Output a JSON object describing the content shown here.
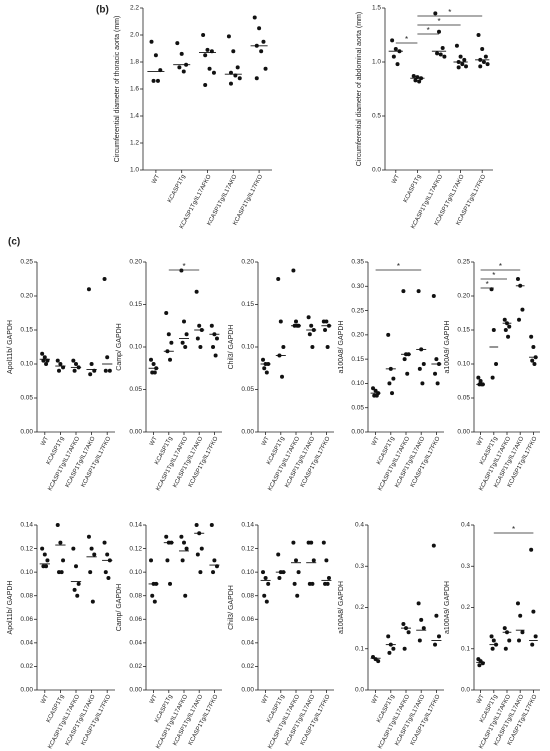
{
  "panel_labels": [
    "(b)",
    "(c)"
  ],
  "chart_data": [
    {
      "type": "dot",
      "color": "#111111",
      "ylabel": "Circumferential diameter of thoracic aorta (mm)",
      "categories": [
        "WT",
        "KCASP1Tg",
        "KCASP1Tg/IL17AFKO",
        "KCASP1Tg/IL17AKO",
        "KCASP1Tg/IL17FKO"
      ],
      "groups": [
        [
          1.95,
          1.85,
          1.74,
          1.66,
          1.66
        ],
        [
          1.94,
          1.86,
          1.78,
          1.76,
          1.73
        ],
        [
          2.0,
          1.89,
          1.88,
          1.85,
          1.75,
          1.72,
          1.63
        ],
        [
          1.99,
          1.88,
          1.76,
          1.72,
          1.7,
          1.68,
          1.64
        ],
        [
          2.13,
          2.05,
          1.95,
          1.92,
          1.88,
          1.75,
          1.68
        ]
      ],
      "medians": [
        1.73,
        1.78,
        1.87,
        1.71,
        1.92
      ],
      "ylim": [
        1.0,
        2.2
      ],
      "yticks": [
        {
          "value": 1.0,
          "label": "1.0"
        },
        1.2,
        1.4,
        1.6,
        1.8,
        {
          "value": 2.0,
          "label": "2.0"
        },
        2.2
      ],
      "comparisons": []
    },
    {
      "type": "dot",
      "color": "#111111",
      "ylabel": "Circumferential diameter of abdominal aorta (mm)",
      "categories": [
        "WT",
        "KCASP1Tg",
        "KCASP1Tg/IL17AFKO",
        "KCASP1Tg/IL17AKO",
        "KCASP1Tg/IL17FKO"
      ],
      "groups": [
        [
          1.2,
          1.12,
          1.1,
          1.05,
          0.98
        ],
        [
          0.87,
          0.86,
          0.85,
          0.83,
          0.82
        ],
        [
          1.45,
          1.28,
          1.13,
          1.08,
          1.07,
          1.05
        ],
        [
          1.15,
          1.05,
          1.02,
          1.0,
          0.98,
          0.96,
          0.95
        ],
        [
          1.25,
          1.12,
          1.05,
          1.02,
          1.0,
          0.98,
          0.96
        ]
      ],
      "medians": [
        1.1,
        0.85,
        1.1,
        1.0,
        1.02
      ],
      "ylim": [
        0,
        1.5
      ],
      "yticks": [
        {
          "value": 0,
          "label": "0.0"
        },
        0.5,
        {
          "value": 1.0,
          "label": "1.0"
        },
        1.5
      ],
      "comparisons": [
        {
          "from": "WT",
          "to": "KCASP1Tg",
          "label": "*"
        },
        {
          "from": "KCASP1Tg",
          "to": "KCASP1Tg/IL17AFKO",
          "label": "*"
        },
        {
          "from": "KCASP1Tg",
          "to": "KCASP1Tg/IL17AKO",
          "label": "*"
        },
        {
          "from": "KCASP1Tg",
          "to": "KCASP1Tg/IL17FKO",
          "label": "*"
        }
      ]
    },
    {
      "type": "dot",
      "color": "#111111",
      "ylabel": "Apol11b/ GAPDH",
      "categories": [
        "WT",
        "KCASP1Tg",
        "KCASP1Tg/IL17AFKO",
        "KCASP1Tg/IL17AKO",
        "KCASP1Tg/IL17FKO"
      ],
      "groups": [
        [
          0.115,
          0.11,
          0.105,
          0.105,
          0.1
        ],
        [
          0.105,
          0.1,
          0.095,
          0.09
        ],
        [
          0.105,
          0.1,
          0.095,
          0.09
        ],
        [
          0.21,
          0.1,
          0.09,
          0.085
        ],
        [
          0.225,
          0.11,
          0.09,
          0.09
        ]
      ],
      "medians": [
        0.107,
        0.097,
        0.095,
        0.092,
        0.1
      ],
      "ylim": [
        0,
        0.25
      ],
      "yticks": [
        {
          "value": 0,
          "label": "0.00"
        },
        0.05,
        {
          "value": 0.1,
          "label": "0.10"
        },
        0.15,
        {
          "value": 0.2,
          "label": "0.20"
        },
        0.25
      ],
      "comparisons": []
    },
    {
      "type": "dot",
      "color": "#111111",
      "ylabel": "Camp/ GAPDH",
      "categories": [
        "WT",
        "KCASP1Tg",
        "KCASP1Tg/IL17AFKO",
        "KCASP1Tg/IL17AKO",
        "KCASP1Tg/IL17FKO"
      ],
      "groups": [
        [
          0.085,
          0.08,
          0.075,
          0.07,
          0.07
        ],
        [
          0.14,
          0.115,
          0.105,
          0.095,
          0.085
        ],
        [
          0.19,
          0.13,
          0.115,
          0.105,
          0.1
        ],
        [
          0.165,
          0.125,
          0.12,
          0.11,
          0.1
        ],
        [
          0.125,
          0.115,
          0.11,
          0.1,
          0.09
        ]
      ],
      "medians": [
        0.075,
        0.095,
        0.11,
        0.12,
        0.115
      ],
      "ylim": [
        0,
        0.2
      ],
      "yticks": [
        {
          "value": 0,
          "label": "0.00"
        },
        0.05,
        {
          "value": 0.1,
          "label": "0.10"
        },
        0.15,
        {
          "value": 0.2,
          "label": "0.20"
        }
      ],
      "comparisons": [
        {
          "from": "KCASP1Tg",
          "to": "KCASP1Tg/IL17AKO",
          "label": "*"
        }
      ]
    },
    {
      "type": "dot",
      "color": "#111111",
      "ylabel": "Chil3/ GAPDH",
      "categories": [
        "WT",
        "KCASP1Tg",
        "KCASP1Tg/IL17AFKO",
        "KCASP1Tg/IL17AKO",
        "KCASP1Tg/IL17FKO"
      ],
      "groups": [
        [
          0.085,
          0.08,
          0.08,
          0.075,
          0.07
        ],
        [
          0.18,
          0.13,
          0.1,
          0.09,
          0.065
        ],
        [
          0.19,
          0.13,
          0.125,
          0.125,
          0.125
        ],
        [
          0.135,
          0.125,
          0.12,
          0.115,
          0.1
        ],
        [
          0.13,
          0.13,
          0.125,
          0.12,
          0.1
        ]
      ],
      "medians": [
        0.08,
        0.09,
        0.125,
        0.12,
        0.125
      ],
      "ylim": [
        0,
        0.2
      ],
      "yticks": [
        {
          "value": 0,
          "label": "0.00"
        },
        0.05,
        {
          "value": 0.1,
          "label": "0.10"
        },
        0.15,
        {
          "value": 0.2,
          "label": "0.20"
        }
      ],
      "comparisons": []
    },
    {
      "type": "dot",
      "color": "#111111",
      "ylabel": "a100A8/ GAPDH",
      "categories": [
        "WT",
        "KCASP1Tg",
        "KCASP1Tg/IL17AFKO",
        "KCASP1Tg/IL17AKO",
        "KCASP1Tg/IL17FKO"
      ],
      "groups": [
        [
          0.09,
          0.085,
          0.08,
          0.075,
          0.075
        ],
        [
          0.2,
          0.13,
          0.11,
          0.1,
          0.08
        ],
        [
          0.29,
          0.16,
          0.16,
          0.15,
          0.12
        ],
        [
          0.29,
          0.17,
          0.14,
          0.13,
          0.1
        ],
        [
          0.28,
          0.15,
          0.14,
          0.12,
          0.1
        ]
      ],
      "medians": [
        0.08,
        0.13,
        0.16,
        0.17,
        0.14
      ],
      "ylim": [
        0,
        0.35
      ],
      "yticks": [
        {
          "value": 0,
          "label": "0.00"
        },
        0.05,
        {
          "value": 0.1,
          "label": "0.10"
        },
        0.15,
        {
          "value": 0.2,
          "label": "0.20"
        },
        0.25,
        {
          "value": 0.3,
          "label": "0.30"
        },
        0.35
      ],
      "comparisons": [
        {
          "from": "WT",
          "to": "KCASP1Tg/IL17AKO",
          "label": "*"
        }
      ]
    },
    {
      "type": "dot",
      "color": "#111111",
      "ylabel": "a100A9/ GAPDH",
      "categories": [
        "WT",
        "KCASP1Tg",
        "KCASP1Tg/IL17AFKO",
        "KCASP1Tg/IL17AKO",
        "KCASP1Tg/IL17FKO"
      ],
      "groups": [
        [
          0.08,
          0.075,
          0.07,
          0.07,
          0.07
        ],
        [
          0.21,
          0.15,
          0.1,
          0.08
        ],
        [
          0.165,
          0.16,
          0.155,
          0.15,
          0.14
        ],
        [
          0.225,
          0.215,
          0.18,
          0.165
        ],
        [
          0.14,
          0.125,
          0.11,
          0.105,
          0.1
        ]
      ],
      "medians": [
        0.07,
        0.125,
        0.16,
        0.215,
        0.11
      ],
      "ylim": [
        0,
        0.25
      ],
      "yticks": [
        {
          "value": 0,
          "label": "0.00"
        },
        0.05,
        {
          "value": 0.1,
          "label": "0.10"
        },
        0.15,
        {
          "value": 0.2,
          "label": "0.20"
        },
        0.25
      ],
      "comparisons": [
        {
          "from": "WT",
          "to": "KCASP1Tg",
          "label": "*"
        },
        {
          "from": "WT",
          "to": "KCASP1Tg/IL17AFKO",
          "label": "*"
        },
        {
          "from": "WT",
          "to": "KCASP1Tg/IL17AKO",
          "label": "*"
        }
      ]
    },
    {
      "type": "dot",
      "color": "#111111",
      "ylabel": "Apol11b/ GAPDH",
      "categories": [
        "WT",
        "KCASP1Tg",
        "KCASP1Tg/IL17AFKO",
        "KCASP1Tg/IL17AKO",
        "KCASP1Tg/IL17FKO"
      ],
      "groups": [
        [
          0.12,
          0.115,
          0.11,
          0.105,
          0.105
        ],
        [
          0.14,
          0.125,
          0.11,
          0.1,
          0.1
        ],
        [
          0.12,
          0.105,
          0.09,
          0.085,
          0.08
        ],
        [
          0.13,
          0.12,
          0.115,
          0.1,
          0.075
        ],
        [
          0.125,
          0.115,
          0.11,
          0.1,
          0.095
        ]
      ],
      "medians": [
        0.107,
        0.123,
        0.092,
        0.113,
        0.11
      ],
      "ylim": [
        0,
        0.14
      ],
      "yticks": [
        {
          "value": 0,
          "label": "0.00"
        },
        0.02,
        0.04,
        0.06,
        0.08,
        {
          "value": 0.1,
          "label": "0.10"
        },
        0.12,
        0.14
      ],
      "comparisons": []
    },
    {
      "type": "dot",
      "color": "#111111",
      "ylabel": "Camp/ GAPDH",
      "categories": [
        "WT",
        "KCASP1Tg",
        "KCASP1Tg/IL17AFKO",
        "KCASP1Tg/IL17AKO",
        "KCASP1Tg/IL17FKO"
      ],
      "groups": [
        [
          0.11,
          0.09,
          0.09,
          0.08,
          0.075
        ],
        [
          0.13,
          0.125,
          0.125,
          0.11,
          0.09
        ],
        [
          0.13,
          0.125,
          0.12,
          0.11,
          0.08
        ],
        [
          0.14,
          0.133,
          0.12,
          0.115,
          0.1
        ],
        [
          0.14,
          0.11,
          0.105,
          0.1
        ]
      ],
      "medians": [
        0.09,
        0.125,
        0.118,
        0.133,
        0.106
      ],
      "ylim": [
        0,
        0.14
      ],
      "yticks": [
        {
          "value": 0,
          "label": "0.00"
        },
        0.02,
        0.04,
        0.06,
        0.08,
        {
          "value": 0.1,
          "label": "0.10"
        },
        0.12,
        0.14
      ],
      "comparisons": []
    },
    {
      "type": "dot",
      "color": "#111111",
      "ylabel": "Chil3/ GAPDH",
      "categories": [
        "WT",
        "KCASP1Tg",
        "KCASP1Tg/IL17AFKO",
        "KCASP1Tg/IL17AKO",
        "KCASP1Tg/IL17FKO"
      ],
      "groups": [
        [
          0.1,
          0.095,
          0.09,
          0.08,
          0.075
        ],
        [
          0.115,
          0.1,
          0.1,
          0.095
        ],
        [
          0.125,
          0.11,
          0.1,
          0.09,
          0.08
        ],
        [
          0.125,
          0.125,
          0.11,
          0.09,
          0.09
        ],
        [
          0.125,
          0.11,
          0.095,
          0.09,
          0.09
        ]
      ],
      "medians": [
        0.093,
        0.1,
        0.108,
        0.108,
        0.093
      ],
      "ylim": [
        0,
        0.14
      ],
      "yticks": [
        {
          "value": 0,
          "label": "0.00"
        },
        0.02,
        0.04,
        0.06,
        0.08,
        {
          "value": 0.1,
          "label": "0.10"
        },
        0.12,
        0.14
      ],
      "comparisons": []
    },
    {
      "type": "dot",
      "color": "#111111",
      "ylabel": "a100A8/ GAPDH",
      "categories": [
        "WT",
        "KCASP1Tg",
        "KCASP1Tg/IL17AFKO",
        "KCASP1Tg/IL17AKO",
        "KCASP1Tg/IL17FKO"
      ],
      "groups": [
        [
          0.08,
          0.075,
          0.07
        ],
        [
          0.13,
          0.11,
          0.1,
          0.09
        ],
        [
          0.16,
          0.15,
          0.14,
          0.1
        ],
        [
          0.21,
          0.17,
          0.15,
          0.12
        ],
        [
          0.35,
          0.18,
          0.13,
          0.11
        ]
      ],
      "medians": [
        0.077,
        0.11,
        0.15,
        0.145,
        0.12
      ],
      "ylim": [
        0,
        0.4
      ],
      "yticks": [
        {
          "value": 0,
          "label": "0.0"
        },
        0.1,
        0.2,
        0.3,
        0.4
      ],
      "comparisons": []
    },
    {
      "type": "dot",
      "color": "#111111",
      "ylabel": "a100A9/ GAPDH",
      "categories": [
        "WT",
        "KCASP1Tg",
        "KCASP1Tg/IL17AFKO",
        "KCASP1Tg/IL17AKO",
        "KCASP1Tg/IL17FKO"
      ],
      "groups": [
        [
          0.075,
          0.07,
          0.065,
          0.06
        ],
        [
          0.13,
          0.12,
          0.11,
          0.1
        ],
        [
          0.15,
          0.14,
          0.12,
          0.1
        ],
        [
          0.21,
          0.18,
          0.14,
          0.12
        ],
        [
          0.34,
          0.19,
          0.13,
          0.11
        ]
      ],
      "medians": [
        0.067,
        0.11,
        0.14,
        0.145,
        0.12
      ],
      "ylim": [
        0,
        0.4
      ],
      "yticks": [
        {
          "value": 0,
          "label": "0.0"
        },
        0.1,
        0.2,
        0.3,
        0.4
      ],
      "comparisons": [
        {
          "from": "KCASP1Tg",
          "to": "KCASP1Tg/IL17FKO",
          "label": "*"
        }
      ]
    }
  ]
}
